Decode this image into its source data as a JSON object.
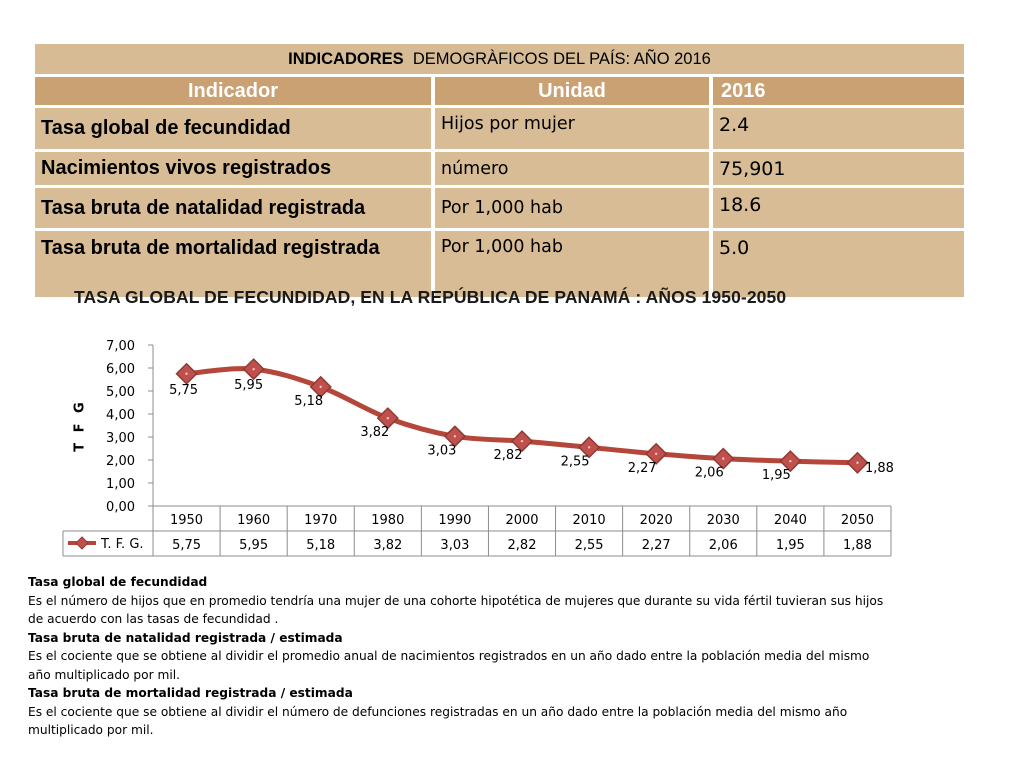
{
  "table": {
    "title_bold": "INDICADORES",
    "title_rest": "DEMOGRÀFICOS DEL PAÍS: AÑO 2016",
    "headers": [
      "Indicador",
      "Unidad",
      "2016"
    ],
    "rows": [
      {
        "indicator": "Tasa global de fecundidad",
        "unit": "Hijos por mujer",
        "value": "2.4"
      },
      {
        "indicator": "Nacimientos vivos registrados",
        "unit": "número",
        "value": "75,901"
      },
      {
        "indicator": "Tasa bruta de natalidad registrada",
        "unit": "Por 1,000 hab",
        "value": "18.6"
      },
      {
        "indicator": "Tasa bruta de mortalidad registrada",
        "unit": "Por 1,000 hab",
        "value": "5.0"
      }
    ]
  },
  "chart_data": {
    "type": "line",
    "title": "TASA GLOBAL DE FECUNDIDAD, EN LA REPÚBLICA DE PANAMÁ : AÑOS 1950-2050",
    "xlabel": "",
    "ylabel": "T F G",
    "categories": [
      "1950",
      "1960",
      "1970",
      "1980",
      "1990",
      "2000",
      "2010",
      "2020",
      "2030",
      "2040",
      "2050"
    ],
    "series": [
      {
        "name": "T. F. G.",
        "values": [
          5.75,
          5.95,
          5.18,
          3.82,
          3.03,
          2.82,
          2.55,
          2.27,
          2.06,
          1.95,
          1.88
        ],
        "labels": [
          "5,75",
          "5,95",
          "5,18",
          "3,82",
          "3,03",
          "2,82",
          "2,55",
          "2,27",
          "2,06",
          "1,95",
          "1,88"
        ]
      }
    ],
    "ylim": [
      0,
      7
    ],
    "yticks": [
      "0,00",
      "1,00",
      "2,00",
      "3,00",
      "4,00",
      "5,00",
      "6,00",
      "7,00"
    ],
    "legend": "data-table-left",
    "grid": false,
    "line_color": "#b5473a",
    "marker_color": "#c0504d"
  },
  "definitions": [
    {
      "heading": "Tasa global de fecundidad",
      "lines": [
        "Es el número de hijos que en promedio tendría una mujer de una cohorte hipotética de mujeres que durante su vida fértil tuvieran sus hijos",
        "de acuerdo con las tasas de fecundidad ."
      ]
    },
    {
      "heading": "Tasa bruta de natalidad registrada / estimada",
      "lines": [
        "Es el cociente que se obtiene al dividir el promedio anual de nacimientos registrados en un año dado entre la población media del mismo",
        "año multiplicado por mil."
      ]
    },
    {
      "heading": "Tasa bruta de mortalidad registrada / estimada",
      "lines": [
        "Es el cociente que se obtiene al dividir el número de defunciones registradas en un año dado entre la población media del mismo año",
        "multiplicado por mil."
      ]
    }
  ]
}
